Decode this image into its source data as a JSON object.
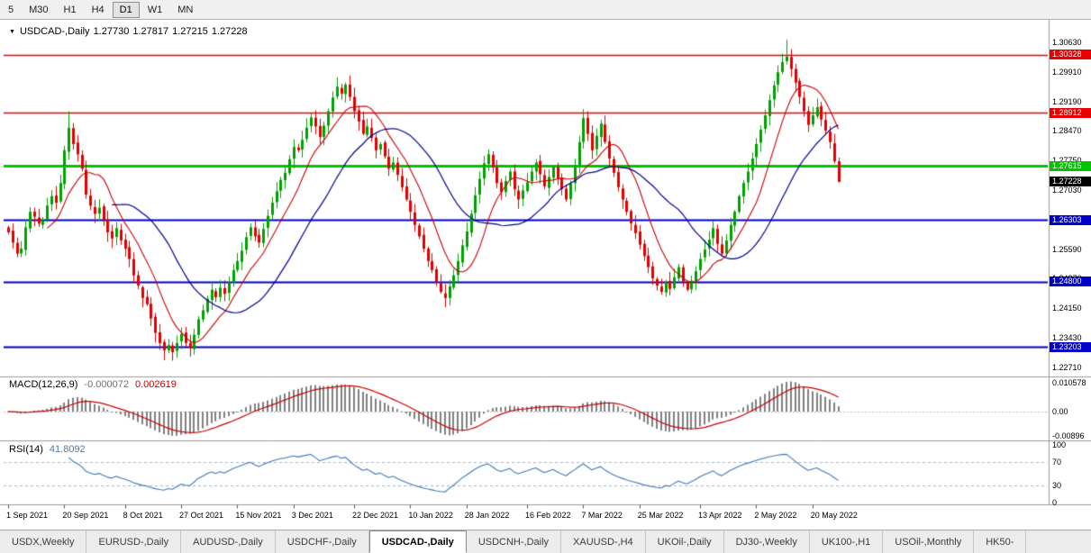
{
  "toolbar": {
    "timeframes": [
      {
        "label": "5",
        "active": false
      },
      {
        "label": "M30",
        "active": false
      },
      {
        "label": "H1",
        "active": false
      },
      {
        "label": "H4",
        "active": false
      },
      {
        "label": "D1",
        "active": true
      },
      {
        "label": "W1",
        "active": false
      },
      {
        "label": "MN",
        "active": false
      }
    ]
  },
  "chart_data": {
    "type": "candlestick",
    "title_symbol": "USDCAD-,Daily",
    "ohlc": {
      "open": "1.27730",
      "high": "1.27817",
      "low": "1.27215",
      "close": "1.27228"
    },
    "price_axis_labels": [
      "1.30630",
      "1.29910",
      "1.29190",
      "1.28470",
      "1.27750",
      "1.27030",
      "1.26310",
      "1.25590",
      "1.24870",
      "1.24150",
      "1.23430",
      "1.22710"
    ],
    "hlines": [
      {
        "price": 1.30328,
        "label": "1.30328",
        "color": "#E80000",
        "width": 1.4
      },
      {
        "price": 1.28912,
        "label": "1.28912",
        "color": "#E80000",
        "width": 1.4
      },
      {
        "price": 1.27615,
        "label": "1.27615",
        "color": "#00C400",
        "width": 3
      },
      {
        "price": 1.26303,
        "label": "1.26303",
        "color": "#0000C8",
        "width": 2
      },
      {
        "price": 1.248,
        "label": "1.24800",
        "color": "#0000C8",
        "width": 2
      },
      {
        "price": 1.23203,
        "label": "1.23203",
        "color": "#0000C8",
        "width": 2
      }
    ],
    "current_price": {
      "price": 1.27228,
      "label": "1.27228",
      "bg": "#000000"
    },
    "date_labels": [
      {
        "label": "1 Sep 2021",
        "index": 0
      },
      {
        "label": "20 Sep 2021",
        "index": 13
      },
      {
        "label": "8 Oct 2021",
        "index": 27
      },
      {
        "label": "27 Oct 2021",
        "index": 40
      },
      {
        "label": "15 Nov 2021",
        "index": 53
      },
      {
        "label": "3 Dec 2021",
        "index": 66
      },
      {
        "label": "22 Dec 2021",
        "index": 80
      },
      {
        "label": "10 Jan 2022",
        "index": 93
      },
      {
        "label": "28 Jan 2022",
        "index": 106
      },
      {
        "label": "16 Feb 2022",
        "index": 120
      },
      {
        "label": "7 Mar 2022",
        "index": 133
      },
      {
        "label": "25 Mar 2022",
        "index": 146
      },
      {
        "label": "13 Apr 2022",
        "index": 160
      },
      {
        "label": "2 May 2022",
        "index": 173
      },
      {
        "label": "20 May 2022",
        "index": 186
      }
    ],
    "closes": [
      1.26,
      1.2575,
      1.2548,
      1.256,
      1.2612,
      1.265,
      1.2638,
      1.2621,
      1.263,
      1.2665,
      1.2688,
      1.2672,
      1.272,
      1.28,
      1.2855,
      1.2815,
      1.279,
      1.2755,
      1.2692,
      1.2665,
      1.2645,
      1.266,
      1.263,
      1.26,
      1.2585,
      1.261,
      1.258,
      1.256,
      1.2535,
      1.2495,
      1.247,
      1.244,
      1.2425,
      1.239,
      1.2355,
      1.233,
      1.2312,
      1.2325,
      1.2308,
      1.233,
      1.2352,
      1.233,
      1.2318,
      1.235,
      1.2388,
      1.241,
      1.2438,
      1.246,
      1.2442,
      1.2465,
      1.245,
      1.2478,
      1.2508,
      1.253,
      1.2555,
      1.2588,
      1.2612,
      1.259,
      1.2575,
      1.2608,
      1.264,
      1.2672,
      1.27,
      1.2728,
      1.2745,
      1.2778,
      1.2808,
      1.28,
      1.2825,
      1.2855,
      1.288,
      1.2858,
      1.2832,
      1.286,
      1.2895,
      1.2928,
      1.2955,
      1.2938,
      1.296,
      1.293,
      1.2895,
      1.287,
      1.284,
      1.2858,
      1.283,
      1.28,
      1.2815,
      1.2785,
      1.2755,
      1.277,
      1.274,
      1.271,
      1.268,
      1.265,
      1.2618,
      1.259,
      1.256,
      1.253,
      1.2508,
      1.2478,
      1.2455,
      1.244,
      1.2468,
      1.2495,
      1.253,
      1.2568,
      1.2602,
      1.2645,
      1.269,
      1.273,
      1.2768,
      1.279,
      1.2758,
      1.272,
      1.2698,
      1.2725,
      1.2748,
      1.2705,
      1.268,
      1.2702,
      1.2722,
      1.2748,
      1.277,
      1.2742,
      1.2712,
      1.2735,
      1.2758,
      1.273,
      1.2705,
      1.268,
      1.272,
      1.2762,
      1.282,
      1.2878,
      1.284,
      1.28,
      1.2835,
      1.2865,
      1.282,
      1.278,
      1.2745,
      1.271,
      1.268,
      1.265,
      1.2622,
      1.2598,
      1.257,
      1.2542,
      1.2515,
      1.2488,
      1.247,
      1.2455,
      1.2478,
      1.2462,
      1.249,
      1.2515,
      1.248,
      1.246,
      1.2482,
      1.2505,
      1.2535,
      1.2558,
      1.2582,
      1.261,
      1.2572,
      1.2548,
      1.258,
      1.2618,
      1.265,
      1.2688,
      1.272,
      1.2748,
      1.278,
      1.2815,
      1.285,
      1.2885,
      1.2922,
      1.2958,
      1.299,
      1.3015,
      1.3028,
      1.2998,
      1.2965,
      1.293,
      1.2895,
      1.2862,
      1.2885,
      1.2905,
      1.2875,
      1.2848,
      1.282,
      1.2773,
      1.27228
    ],
    "colors": {
      "up": "#00A000",
      "down": "#E00000",
      "ma_fast": "#CC0000",
      "ma_slow": "#000099",
      "macd_hist": "#808080",
      "macd_signal": "#CC0000",
      "rsi_line": "#3E7AB8"
    }
  },
  "macd": {
    "name": "MACD(12,26,9)",
    "value_main": "-0.000072",
    "value_signal": "0.002619",
    "axis_labels": [
      "0.010578",
      "0.00",
      "-0.00896"
    ]
  },
  "rsi": {
    "name": "RSI(14)",
    "value": "41.8092",
    "axis_labels": [
      "100",
      "70",
      "30",
      "0"
    ],
    "levels": [
      70,
      30
    ]
  },
  "tabs": [
    {
      "label": "USDX,Weekly",
      "active": false
    },
    {
      "label": "EURUSD-,Daily",
      "active": false
    },
    {
      "label": "AUDUSD-,Daily",
      "active": false
    },
    {
      "label": "USDCHF-,Daily",
      "active": false
    },
    {
      "label": "USDCAD-,Daily",
      "active": true
    },
    {
      "label": "USDCNH-,Daily",
      "active": false
    },
    {
      "label": "XAUUSD-,H4",
      "active": false
    },
    {
      "label": "UKOil-,Daily",
      "active": false
    },
    {
      "label": "DJ30-,Weekly",
      "active": false
    },
    {
      "label": "UK100-,H1",
      "active": false
    },
    {
      "label": "USOil-,Monthly",
      "active": false
    },
    {
      "label": "HK50-",
      "active": false
    }
  ]
}
